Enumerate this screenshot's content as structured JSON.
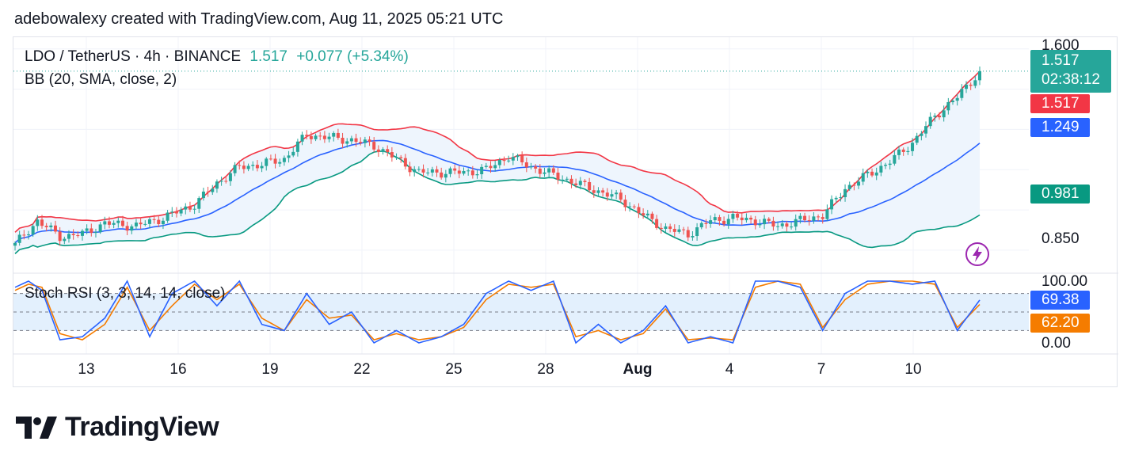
{
  "header": {
    "text": "adebowalexy created with TradingView.com, Aug 11, 2025 05:21 UTC"
  },
  "legend": {
    "symbol": "LDO / TetherUS · 4h · BINANCE",
    "price": "1.517",
    "change": "+0.077 (+5.34%)",
    "indicator": "BB (20, SMA, close, 2)",
    "osc": "Stoch RSI (3, 3, 14, 14, close)"
  },
  "price_axis": {
    "ticks": [
      "1.600",
      "0.850"
    ],
    "tags": {
      "last_price": "1.517",
      "countdown": "02:38:12",
      "upper": "1.517",
      "basis": "1.249",
      "lower": "0.981"
    }
  },
  "osc_axis": {
    "ticks": [
      "100.00",
      "0.00"
    ],
    "tags": {
      "k": "69.38",
      "d": "62.20"
    }
  },
  "time_axis": {
    "labels": [
      "13",
      "16",
      "19",
      "22",
      "25",
      "28",
      "Aug",
      "4",
      "7",
      "10"
    ]
  },
  "colors": {
    "up": "#26a69a",
    "down": "#ef5350",
    "bb_upper": "#f23645",
    "bb_basis": "#2962ff",
    "bb_lower": "#089981",
    "band_fill": "#eef5fd",
    "k": "#2962ff",
    "d": "#f57c00",
    "osc_fill": "#e3f0fd"
  },
  "chart_data": [
    {
      "type": "candlestick",
      "title": "LDO / TetherUS · 4h · BINANCE",
      "ylim": [
        0.77,
        1.62
      ],
      "x_labels": [
        "13",
        "16",
        "19",
        "22",
        "25",
        "28",
        "Aug",
        "4",
        "7",
        "10"
      ],
      "anchors": [
        [
          0,
          0.87
        ],
        [
          5,
          0.96
        ],
        [
          10,
          0.9
        ],
        [
          15,
          0.91
        ],
        [
          20,
          0.95
        ],
        [
          27,
          0.94
        ],
        [
          33,
          0.97
        ],
        [
          40,
          1.02
        ],
        [
          45,
          1.1
        ],
        [
          50,
          1.16
        ],
        [
          55,
          1.17
        ],
        [
          60,
          1.19
        ],
        [
          65,
          1.28
        ],
        [
          70,
          1.27
        ],
        [
          75,
          1.26
        ],
        [
          80,
          1.24
        ],
        [
          85,
          1.19
        ],
        [
          90,
          1.14
        ],
        [
          95,
          1.14
        ],
        [
          100,
          1.14
        ],
        [
          105,
          1.15
        ],
        [
          110,
          1.2
        ],
        [
          115,
          1.16
        ],
        [
          120,
          1.13
        ],
        [
          125,
          1.1
        ],
        [
          130,
          1.07
        ],
        [
          135,
          1.04
        ],
        [
          140,
          0.98
        ],
        [
          145,
          0.93
        ],
        [
          150,
          0.91
        ],
        [
          155,
          0.96
        ],
        [
          160,
          0.97
        ],
        [
          165,
          0.96
        ],
        [
          170,
          0.94
        ],
        [
          175,
          0.96
        ],
        [
          180,
          0.98
        ],
        [
          185,
          1.08
        ],
        [
          190,
          1.13
        ],
        [
          195,
          1.18
        ],
        [
          200,
          1.25
        ],
        [
          205,
          1.35
        ],
        [
          210,
          1.42
        ],
        [
          215,
          1.517
        ]
      ],
      "bollinger": {
        "upper_end": 1.517,
        "basis_end": 1.249,
        "lower_end": 0.981
      }
    },
    {
      "type": "line",
      "title": "Stoch RSI (3, 3, 14, 14, close)",
      "ylim": [
        0,
        100
      ],
      "series": [
        {
          "name": "K",
          "last": 69.38,
          "anchors": [
            [
              0,
              90
            ],
            [
              3,
              100
            ],
            [
              6,
              85
            ],
            [
              10,
              5
            ],
            [
              15,
              10
            ],
            [
              20,
              40
            ],
            [
              25,
              100
            ],
            [
              30,
              10
            ],
            [
              35,
              80
            ],
            [
              40,
              100
            ],
            [
              45,
              60
            ],
            [
              50,
              100
            ],
            [
              55,
              30
            ],
            [
              60,
              20
            ],
            [
              65,
              80
            ],
            [
              70,
              30
            ],
            [
              75,
              50
            ],
            [
              80,
              0
            ],
            [
              85,
              20
            ],
            [
              90,
              0
            ],
            [
              95,
              10
            ],
            [
              100,
              30
            ],
            [
              105,
              80
            ],
            [
              110,
              100
            ],
            [
              115,
              85
            ],
            [
              120,
              100
            ],
            [
              125,
              0
            ],
            [
              130,
              30
            ],
            [
              135,
              0
            ],
            [
              140,
              20
            ],
            [
              145,
              60
            ],
            [
              150,
              0
            ],
            [
              155,
              10
            ],
            [
              160,
              0
            ],
            [
              165,
              100
            ],
            [
              170,
              100
            ],
            [
              175,
              90
            ],
            [
              180,
              20
            ],
            [
              185,
              80
            ],
            [
              190,
              100
            ],
            [
              195,
              100
            ],
            [
              200,
              95
            ],
            [
              205,
              100
            ],
            [
              210,
              20
            ],
            [
              215,
              69.38
            ]
          ]
        },
        {
          "name": "D",
          "last": 62.2,
          "anchors": [
            [
              0,
              85
            ],
            [
              3,
              95
            ],
            [
              6,
              90
            ],
            [
              10,
              15
            ],
            [
              15,
              5
            ],
            [
              20,
              30
            ],
            [
              25,
              90
            ],
            [
              30,
              20
            ],
            [
              35,
              60
            ],
            [
              40,
              95
            ],
            [
              45,
              70
            ],
            [
              50,
              95
            ],
            [
              55,
              40
            ],
            [
              60,
              20
            ],
            [
              65,
              70
            ],
            [
              70,
              40
            ],
            [
              75,
              45
            ],
            [
              80,
              5
            ],
            [
              85,
              15
            ],
            [
              90,
              5
            ],
            [
              95,
              10
            ],
            [
              100,
              25
            ],
            [
              105,
              70
            ],
            [
              110,
              95
            ],
            [
              115,
              90
            ],
            [
              120,
              95
            ],
            [
              125,
              10
            ],
            [
              130,
              20
            ],
            [
              135,
              5
            ],
            [
              140,
              15
            ],
            [
              145,
              55
            ],
            [
              150,
              5
            ],
            [
              155,
              8
            ],
            [
              160,
              5
            ],
            [
              165,
              90
            ],
            [
              170,
              100
            ],
            [
              175,
              95
            ],
            [
              180,
              25
            ],
            [
              185,
              70
            ],
            [
              190,
              95
            ],
            [
              195,
              100
            ],
            [
              200,
              100
            ],
            [
              205,
              95
            ],
            [
              210,
              25
            ],
            [
              215,
              62.2
            ]
          ]
        }
      ]
    }
  ]
}
